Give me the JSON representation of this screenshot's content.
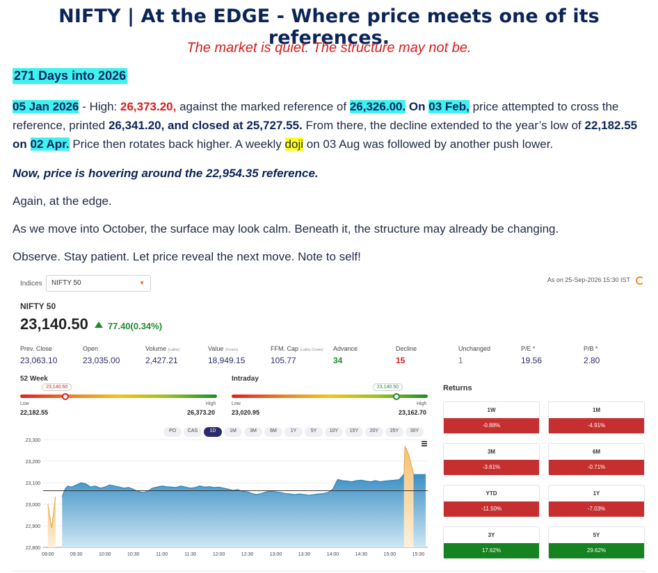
{
  "article": {
    "headline": "NIFTY | At the EDGE - Where price meets one of its references.",
    "subhead": "The market is quiet. The structure may not be.",
    "day_count": "271 Days into 2026",
    "p1": {
      "date1": "05 Jan 2026",
      "t1": " - High: ",
      "high": "26,373.20,",
      "t2": " against the marked reference of ",
      "ref1": "26,326.00.",
      "t3": " On ",
      "date2": "03 Feb,",
      "t4": " price attempted to cross the reference, printed ",
      "printed": "26,341.20, and closed at 25,727.55.",
      "t5": " From there, the decline extended to the year’s low of ",
      "low": "22,182.55 on",
      "t6": " ",
      "date3": "02 Apr.",
      "t7": " Price then rotates back higher. A weekly ",
      "doji": "doji",
      "t8": " on 03 Aug was followed by another push lower."
    },
    "p2": "Now, price is hovering around the 22,954.35 reference.",
    "p3": "Again, at the edge.",
    "p4": "As we move into October, the surface may look calm. Beneath it, the structure may already be changing.",
    "p5": "Observe. Stay patient. Let price reveal the next move. Note to self!"
  },
  "widget": {
    "indices_label": "Indices",
    "index_select": "NIFTY 50",
    "as_of": "As on 25-Sep-2026 15:30 IST",
    "name": "NIFTY 50",
    "price": "23,140.50",
    "change": "77.40(0.34%)",
    "stats": [
      {
        "label": "Prev. Close",
        "unit": "",
        "value": "23,063.10",
        "tone": "normal"
      },
      {
        "label": "Open",
        "unit": "",
        "value": "23,035.00",
        "tone": "normal"
      },
      {
        "label": "Volume",
        "unit": "(Lakhs)",
        "value": "2,427.21",
        "tone": "normal"
      },
      {
        "label": "Value",
        "unit": "(Crores)",
        "value": "18,949.15",
        "tone": "normal"
      },
      {
        "label": "FFM. Cap",
        "unit": "(Lakhs Crores)",
        "value": "105.77",
        "tone": "normal"
      },
      {
        "label": "Advance",
        "unit": "",
        "value": "34",
        "tone": "green"
      },
      {
        "label": "Decline",
        "unit": "",
        "value": "15",
        "tone": "red"
      },
      {
        "label": "Unchanged",
        "unit": "",
        "value": "1",
        "tone": "gray"
      },
      {
        "label": "P/E *",
        "unit": "",
        "value": "19.56",
        "tone": "normal"
      },
      {
        "label": "P/B *",
        "unit": "",
        "value": "2.80",
        "tone": "normal"
      }
    ],
    "week52": {
      "title": "52 Week",
      "current": "23,140.50",
      "low_label": "Low",
      "low": "22,182.55",
      "high_label": "High",
      "high": "26,373.20",
      "position": 0.23
    },
    "intraday": {
      "title": "Intraday",
      "current": "23,140.50",
      "low_label": "Low",
      "low": "23,020.95",
      "high_label": "High",
      "high": "23,162.70",
      "position": 0.84
    },
    "timeframes": [
      "PO",
      "CAS",
      "1D",
      "1M",
      "3M",
      "6M",
      "1Y",
      "5Y",
      "10Y",
      "15Y",
      "20Y",
      "25Y",
      "30Y"
    ],
    "active_timeframe": "1D",
    "returns_title": "Returns",
    "returns": [
      {
        "label": "1W",
        "value": "-0.88%",
        "sign": "neg"
      },
      {
        "label": "1M",
        "value": "-4.91%",
        "sign": "neg"
      },
      {
        "label": "3M",
        "value": "-3.61%",
        "sign": "neg"
      },
      {
        "label": "6M",
        "value": "-0.71%",
        "sign": "neg"
      },
      {
        "label": "YTD",
        "value": "-11.50%",
        "sign": "neg"
      },
      {
        "label": "1Y",
        "value": "-7.03%",
        "sign": "neg"
      },
      {
        "label": "3Y",
        "value": "17.62%",
        "sign": "pos"
      },
      {
        "label": "5Y",
        "value": "29.62%",
        "sign": "pos"
      }
    ],
    "colors": {
      "positive": "#1e8a2e",
      "negative": "#c62f2f",
      "area": "#3a9fcf",
      "accent": "#2b2a6e"
    }
  },
  "chart_data": {
    "type": "area",
    "y_ticks": [
      22800,
      22900,
      23000,
      23100,
      23200,
      23300
    ],
    "ylim": [
      22800,
      23300
    ],
    "x_ticks": [
      "09:00",
      "09:30",
      "10:00",
      "10:30",
      "11:00",
      "11:30",
      "12:00",
      "12:30",
      "13:00",
      "13:30",
      "14:00",
      "14:30",
      "15:00",
      "15:30"
    ],
    "reference_line": 23063.1,
    "series": [
      {
        "points": [
          [
            "09:15",
            23035
          ],
          [
            "09:18",
            23070
          ],
          [
            "09:21",
            23085
          ],
          [
            "09:25",
            23080
          ],
          [
            "09:30",
            23090
          ],
          [
            "09:35",
            23100
          ],
          [
            "09:40",
            23095
          ],
          [
            "09:45",
            23080
          ],
          [
            "09:50",
            23085
          ],
          [
            "09:55",
            23075
          ],
          [
            "10:00",
            23080
          ],
          [
            "10:05",
            23090
          ],
          [
            "10:10",
            23085
          ],
          [
            "10:15",
            23080
          ],
          [
            "10:20",
            23075
          ],
          [
            "10:25",
            23078
          ],
          [
            "10:30",
            23070
          ],
          [
            "10:35",
            23060
          ],
          [
            "10:40",
            23055
          ],
          [
            "10:45",
            23060
          ],
          [
            "10:50",
            23075
          ],
          [
            "10:55",
            23080
          ],
          [
            "11:00",
            23085
          ],
          [
            "11:05",
            23082
          ],
          [
            "11:10",
            23080
          ],
          [
            "11:15",
            23078
          ],
          [
            "11:20",
            23085
          ],
          [
            "11:25",
            23080
          ],
          [
            "11:30",
            23075
          ],
          [
            "11:35",
            23078
          ],
          [
            "11:40",
            23085
          ],
          [
            "11:45",
            23080
          ],
          [
            "11:50",
            23082
          ],
          [
            "11:55",
            23078
          ],
          [
            "12:00",
            23080
          ],
          [
            "12:05",
            23075
          ],
          [
            "12:10",
            23070
          ],
          [
            "12:15",
            23065
          ],
          [
            "12:20",
            23068
          ],
          [
            "12:25",
            23060
          ],
          [
            "12:30",
            23058
          ],
          [
            "12:35",
            23050
          ],
          [
            "12:40",
            23045
          ],
          [
            "12:45",
            23050
          ],
          [
            "12:50",
            23058
          ],
          [
            "12:55",
            23060
          ],
          [
            "13:00",
            23058
          ],
          [
            "13:05",
            23055
          ],
          [
            "13:10",
            23050
          ],
          [
            "13:15",
            23048
          ],
          [
            "13:20",
            23045
          ],
          [
            "13:25",
            23048
          ],
          [
            "13:30",
            23045
          ],
          [
            "13:35",
            23042
          ],
          [
            "13:40",
            23045
          ],
          [
            "13:45",
            23048
          ],
          [
            "13:50",
            23050
          ],
          [
            "13:55",
            23055
          ],
          [
            "14:00",
            23070
          ],
          [
            "14:05",
            23115
          ],
          [
            "14:10",
            23110
          ],
          [
            "14:15",
            23108
          ],
          [
            "14:20",
            23105
          ],
          [
            "14:25",
            23110
          ],
          [
            "14:30",
            23112
          ],
          [
            "14:35",
            23108
          ],
          [
            "14:40",
            23105
          ],
          [
            "14:45",
            23110
          ],
          [
            "14:50",
            23105
          ],
          [
            "14:55",
            23108
          ],
          [
            "15:00",
            23110
          ],
          [
            "15:05",
            23112
          ],
          [
            "15:10",
            23115
          ],
          [
            "15:15",
            23140
          ]
        ]
      }
    ],
    "pre_open": [
      [
        "09:00",
        23000
      ],
      [
        "09:04",
        22890
      ],
      [
        "09:08",
        23035
      ]
    ],
    "post_close": [
      [
        "15:15",
        23140
      ],
      [
        "15:16",
        23270
      ],
      [
        "15:20",
        23230
      ],
      [
        "15:25",
        23140
      ]
    ]
  }
}
